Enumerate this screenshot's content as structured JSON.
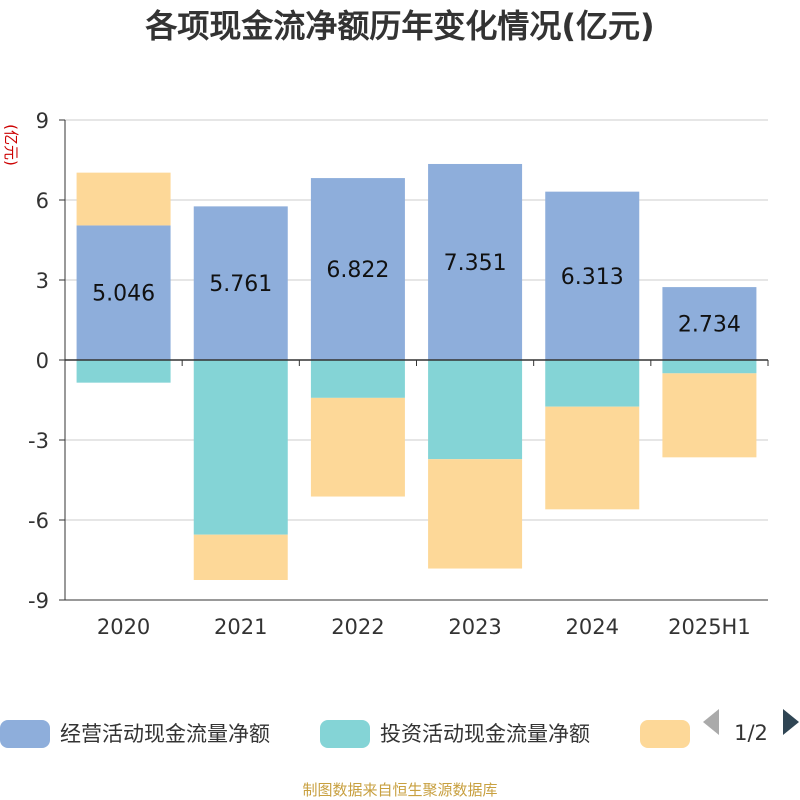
{
  "chart_data": {
    "type": "bar",
    "stacked": true,
    "title": "各项现金流净额历年变化情况(亿元)",
    "ylabel": "(亿元)",
    "categories": [
      "2020",
      "2021",
      "2022",
      "2023",
      "2024",
      "2025H1"
    ],
    "ylim": [
      -9,
      9
    ],
    "yticks": [
      9,
      6,
      3,
      0,
      -3,
      -6,
      -9
    ],
    "grid": true,
    "series": [
      {
        "name": "经营活动现金流量净额",
        "color": "#8eaedb",
        "values": [
          5.046,
          5.761,
          6.822,
          7.351,
          6.313,
          2.734
        ],
        "labels": [
          "5.046",
          "5.761",
          "6.822",
          "7.351",
          "6.313",
          "2.734"
        ]
      },
      {
        "name": "投资活动现金流量净额",
        "color": "#84d4d6",
        "values": [
          -0.85,
          -6.55,
          -1.42,
          -3.72,
          -1.75,
          -0.5
        ]
      },
      {
        "name": "",
        "color": "#fdd898",
        "values": [
          1.98,
          -1.7,
          -3.7,
          -4.1,
          -3.85,
          -3.15
        ]
      }
    ],
    "legend": {
      "position": "bottom",
      "page": "1/2"
    }
  },
  "footer": {
    "source": "制图数据来自恒生聚源数据库"
  },
  "colors": {
    "axis": "#333333",
    "grid": "#cccccc",
    "arrow_prev": "#aaaaaa",
    "arrow_next": "#2f4554"
  },
  "icons": {
    "prev": "triangle-left-icon",
    "next": "triangle-right-icon"
  }
}
